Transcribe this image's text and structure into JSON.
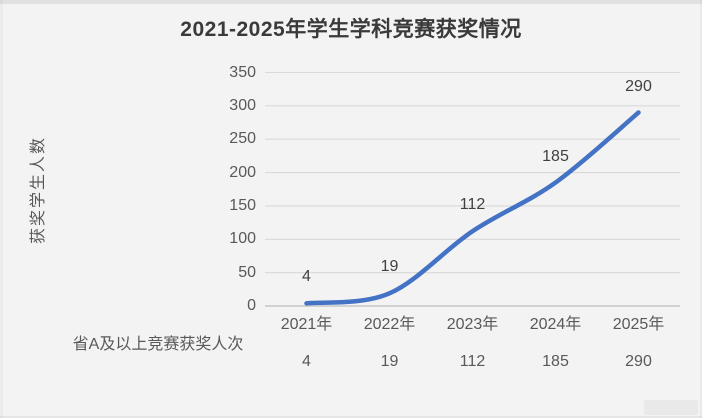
{
  "chart_data": {
    "type": "line",
    "title": "2021-2025年学生学科竞赛获奖情况",
    "ylabel": "获奖学生人数",
    "xlabel": "",
    "categories": [
      "2021年",
      "2022年",
      "2023年",
      "2024年",
      "2025年"
    ],
    "series": [
      {
        "name": "省A及以上竞赛获奖人次",
        "values": [
          4,
          19,
          112,
          185,
          290
        ]
      }
    ],
    "ylim": [
      0,
      350
    ],
    "yticks": [
      0,
      50,
      100,
      150,
      200,
      250,
      300,
      350
    ],
    "grid": "horizontal",
    "legend": "none",
    "smooth_line": true,
    "data_labels": "above-points",
    "data_table_shown": true,
    "colors": {
      "line": "#4472C4",
      "grid": "#d9d9d9",
      "axis": "#c6c6c6",
      "tick_text": "#595959",
      "data_label_text": "#404040",
      "title_text": "#3a3a3a",
      "background": "#f3f3f3"
    }
  }
}
